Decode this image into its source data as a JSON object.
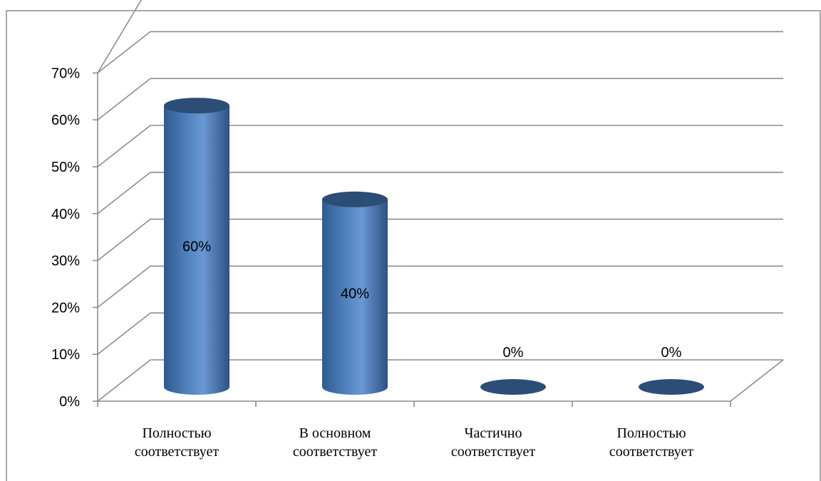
{
  "chart_data": {
    "type": "bar",
    "style": "3d-cylinder",
    "categories": [
      [
        "Полностью",
        "соответствует"
      ],
      [
        "В основном",
        "соответствует"
      ],
      [
        "Частично",
        "соответствует"
      ],
      [
        "Полностью",
        "соответствует"
      ]
    ],
    "values": [
      60,
      40,
      0,
      0
    ],
    "data_labels": [
      "60%",
      "40%",
      "0%",
      "0%"
    ],
    "yticks": [
      "0%",
      "10%",
      "20%",
      "30%",
      "40%",
      "50%",
      "60%",
      "70%"
    ],
    "ylim": [
      0,
      70
    ],
    "grid": true,
    "colors": {
      "bar": "#4f81bd",
      "bar_dark": "#2c4d75",
      "bar_light": "#7ea6dc",
      "grid": "#8c8c8c"
    }
  }
}
